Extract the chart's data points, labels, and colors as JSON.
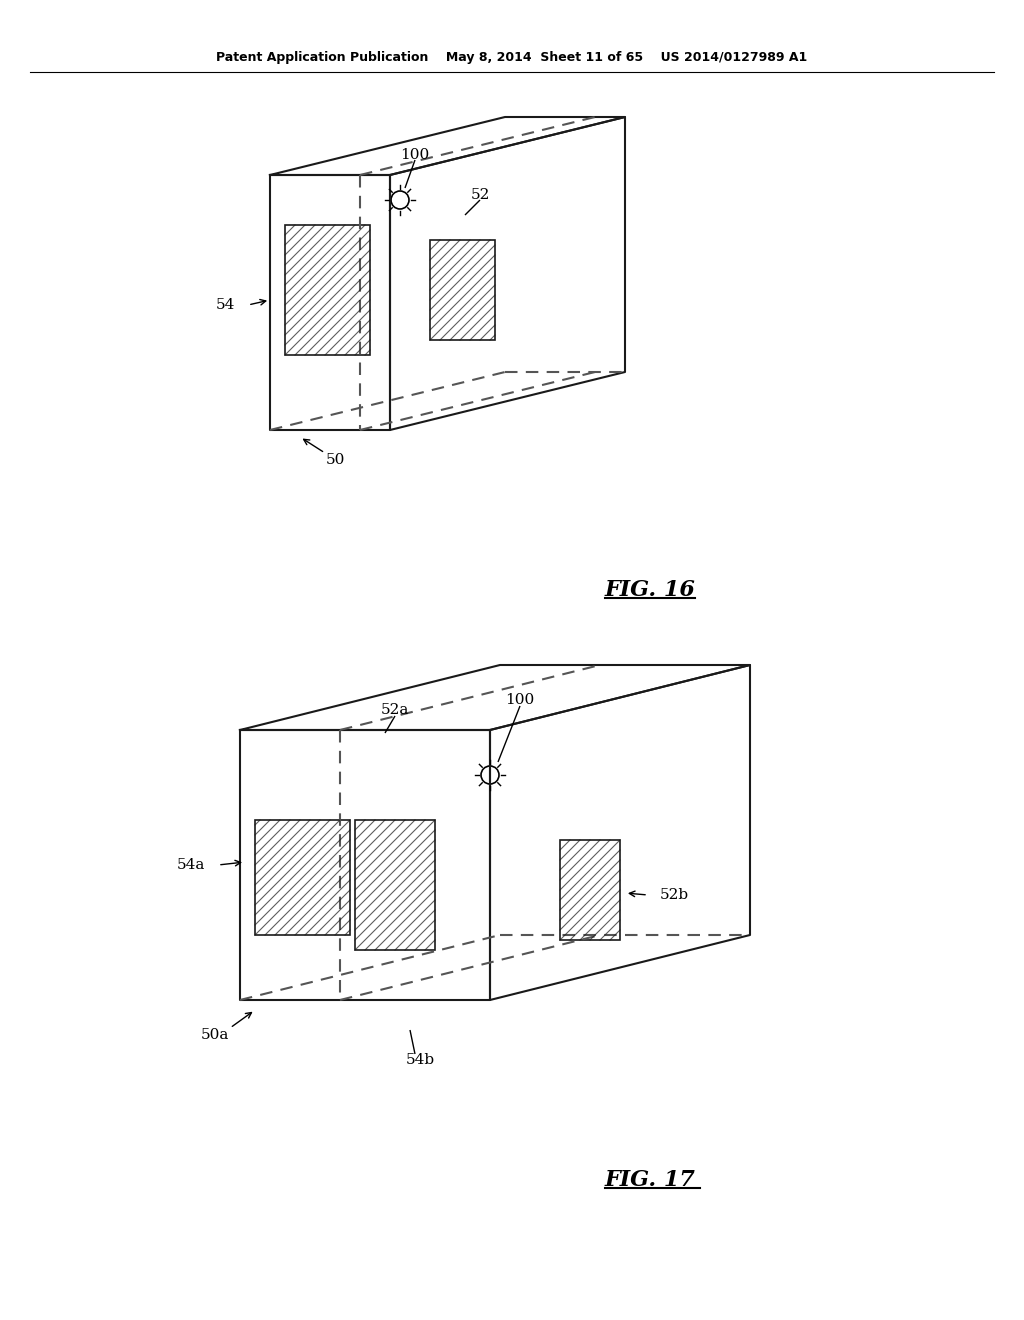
{
  "background_color": "#ffffff",
  "header_text": "Patent Application Publication    May 8, 2014  Sheet 11 of 65    US 2014/0127989 A1",
  "fig16_label": "FIG. 16",
  "fig17_label": "FIG. 17",
  "line_color": "#1a1a1a",
  "hatch_color": "#555555",
  "dashed_color": "#555555"
}
